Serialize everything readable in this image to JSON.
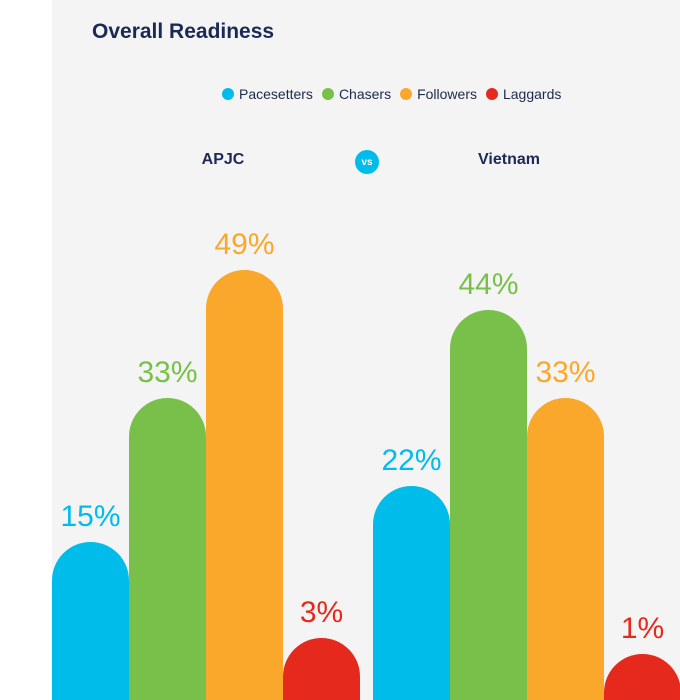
{
  "colors": {
    "pacesetters": "#00bceb",
    "chasers": "#79c04a",
    "followers": "#f9a82b",
    "laggards": "#e52a1d",
    "title": "#1b2a55",
    "panel": "#f4f4f5"
  },
  "chart_data": {
    "type": "bar",
    "title": "Overall Readiness",
    "legend": {
      "placement": "top-right",
      "entries": [
        "Pacesetters",
        "Chasers",
        "Followers",
        "Laggards"
      ]
    },
    "comparison_badge": "vs",
    "groups": [
      {
        "name": "APJC",
        "bars": [
          {
            "series": "Pacesetters",
            "value": 15,
            "label": "15%"
          },
          {
            "series": "Chasers",
            "value": 33,
            "label": "33%"
          },
          {
            "series": "Followers",
            "value": 49,
            "label": "49%"
          },
          {
            "series": "Laggards",
            "value": 3,
            "label": "3%"
          }
        ]
      },
      {
        "name": "Vietnam",
        "bars": [
          {
            "series": "Pacesetters",
            "value": 22,
            "label": "22%"
          },
          {
            "series": "Chasers",
            "value": 44,
            "label": "44%"
          },
          {
            "series": "Followers",
            "value": 33,
            "label": "33%"
          },
          {
            "series": "Laggards",
            "value": 1,
            "label": "1%"
          }
        ]
      }
    ],
    "ylim": [
      0,
      100
    ],
    "grid": false
  }
}
